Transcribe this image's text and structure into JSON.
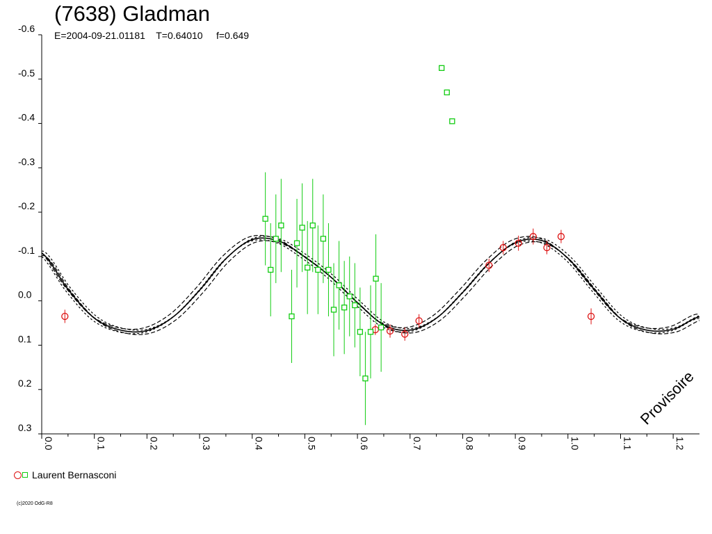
{
  "header": {
    "title": "(7638) Gladman",
    "subtitle": "E=2004-09-21.01181    T=0.64010     f=0.649"
  },
  "watermark": "Provisoire",
  "legend": {
    "label": "Laurent Bernasconi",
    "markers": [
      "circle",
      "square"
    ]
  },
  "copyright": "(c)2020 OdG-R8",
  "chart_data": {
    "type": "scatter",
    "title": "(7638) Gladman",
    "xlim": [
      0.0,
      1.25
    ],
    "ylim": [
      0.3,
      -0.6
    ],
    "y_inverted": true,
    "xticks": [
      "0.0",
      "0.1",
      "0.2",
      "0.3",
      "0.4",
      "0.5",
      "0.6",
      "0.7",
      "0.8",
      "0.9",
      "1.0",
      "1.1",
      "1.2"
    ],
    "yticks": [
      "-0.6",
      "-0.5",
      "-0.4",
      "-0.3",
      "-0.2",
      "-0.1",
      "0.0",
      "0.1",
      "0.2",
      "0.3"
    ],
    "colors": {
      "circle_series": "#dd1111",
      "square_series": "#11cc11",
      "fit_curve": "#000000"
    },
    "fit_curve": {
      "description_from_plot": "fitted lightcurve with dashed envelope",
      "samples": [
        [
          0.0,
          -0.108
        ],
        [
          0.05,
          -0.026
        ],
        [
          0.1,
          0.039
        ],
        [
          0.15,
          0.066
        ],
        [
          0.2,
          0.067
        ],
        [
          0.25,
          0.036
        ],
        [
          0.3,
          -0.024
        ],
        [
          0.35,
          -0.095
        ],
        [
          0.4,
          -0.138
        ],
        [
          0.45,
          -0.135
        ],
        [
          0.5,
          -0.099
        ],
        [
          0.55,
          -0.053
        ],
        [
          0.6,
          0.004
        ],
        [
          0.65,
          0.054
        ],
        [
          0.7,
          0.066
        ],
        [
          0.75,
          0.039
        ],
        [
          0.8,
          -0.019
        ],
        [
          0.85,
          -0.085
        ],
        [
          0.9,
          -0.131
        ],
        [
          0.95,
          -0.136
        ],
        [
          1.0,
          -0.096
        ],
        [
          1.05,
          -0.026
        ],
        [
          1.1,
          0.04
        ],
        [
          1.15,
          0.066
        ],
        [
          1.2,
          0.064
        ],
        [
          1.25,
          0.036
        ]
      ]
    },
    "series": [
      {
        "name": "Laurent Bernasconi",
        "marker": "circle",
        "points": [
          [
            0.044,
            0.035,
            0.015
          ],
          [
            0.634,
            0.065,
            0.012
          ],
          [
            0.662,
            0.068,
            0.015
          ],
          [
            0.69,
            0.075,
            0.015
          ],
          [
            0.717,
            0.045,
            0.015
          ],
          [
            0.85,
            -0.08,
            0.015
          ],
          [
            0.877,
            -0.12,
            0.015
          ],
          [
            0.906,
            -0.13,
            0.017
          ],
          [
            0.934,
            -0.145,
            0.018
          ],
          [
            0.96,
            -0.12,
            0.015
          ],
          [
            0.987,
            -0.145,
            0.015
          ],
          [
            1.044,
            0.035,
            0.018
          ]
        ]
      },
      {
        "name": "",
        "marker": "square",
        "points": [
          [
            0.425,
            -0.185,
            0.105
          ],
          [
            0.435,
            -0.07,
            0.105
          ],
          [
            0.445,
            -0.14,
            0.1
          ],
          [
            0.455,
            -0.17,
            0.105
          ],
          [
            0.475,
            0.035,
            0.105
          ],
          [
            0.485,
            -0.13,
            0.1
          ],
          [
            0.495,
            -0.165,
            0.1
          ],
          [
            0.505,
            -0.075,
            0.105
          ],
          [
            0.515,
            -0.17,
            0.105
          ],
          [
            0.525,
            -0.07,
            0.1
          ],
          [
            0.535,
            -0.14,
            0.1
          ],
          [
            0.545,
            -0.07,
            0.105
          ],
          [
            0.555,
            0.02,
            0.105
          ],
          [
            0.565,
            -0.035,
            0.1
          ],
          [
            0.575,
            0.015,
            0.105
          ],
          [
            0.585,
            -0.01,
            0.09
          ],
          [
            0.595,
            0.01,
            0.095
          ],
          [
            0.605,
            0.07,
            0.1
          ],
          [
            0.615,
            0.175,
            0.105
          ],
          [
            0.625,
            0.07,
            0.105
          ],
          [
            0.635,
            -0.05,
            0.1
          ],
          [
            0.645,
            0.06,
            0.1
          ],
          [
            0.76,
            -0.525,
            null
          ],
          [
            0.77,
            -0.47,
            null
          ],
          [
            0.78,
            -0.405,
            null
          ]
        ]
      }
    ]
  }
}
